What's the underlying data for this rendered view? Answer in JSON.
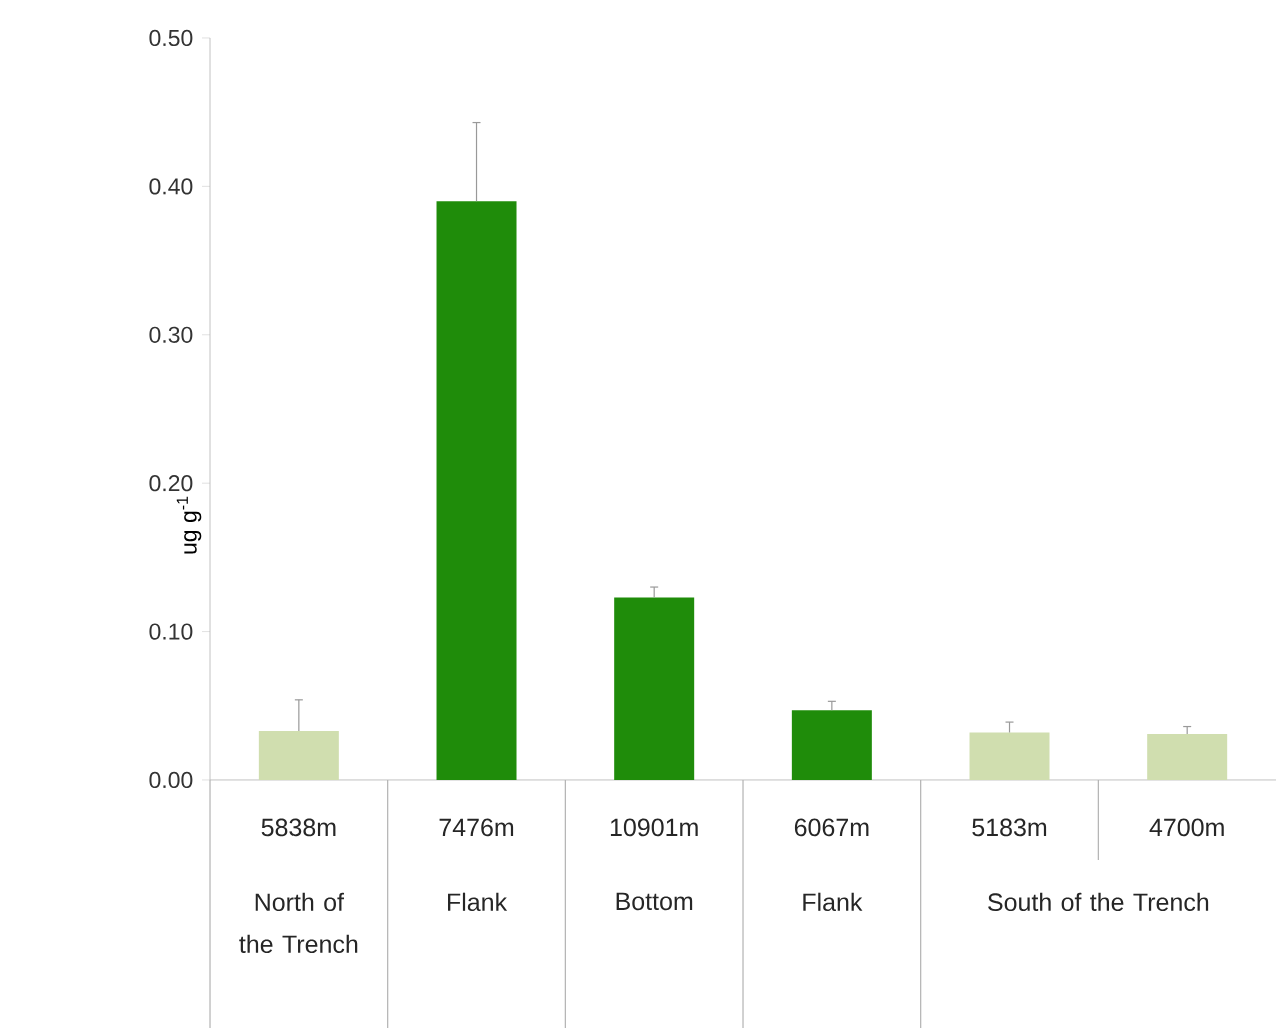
{
  "chart_data": {
    "type": "bar",
    "ylabel": "ug g$^{-1}$",
    "categories": [
      "5838m",
      "7476m",
      "10901m",
      "6067m",
      "5183m",
      "4700m"
    ],
    "values": [
      0.033,
      0.39,
      0.123,
      0.047,
      0.032,
      0.031
    ],
    "colors": [
      "#d0deaf",
      "#1f8c0a",
      "#1f8c0a",
      "#1f8c0a",
      "#d0deaf",
      "#d0deaf"
    ],
    "errors": [
      [
        0.033,
        0.054
      ],
      [
        0.39,
        0.443
      ],
      [
        0.123,
        0.13
      ],
      [
        0.047,
        0.053
      ],
      [
        0.032,
        0.039
      ],
      [
        0.031,
        0.036
      ]
    ],
    "ylim": [
      0,
      0.5
    ],
    "yticks": [
      {
        "value": 0,
        "label": "0.00"
      },
      {
        "value": 0.1,
        "label": "0.10"
      },
      {
        "value": 0.2,
        "label": "0.20"
      },
      {
        "value": 0.3,
        "label": "0.30"
      },
      {
        "value": 0.4,
        "label": "0.40"
      },
      {
        "value": 0.5,
        "label": "0.50"
      }
    ],
    "annotations": [
      "North of the Trench",
      "Flank",
      "Bottom",
      "Flank",
      "South of the Trench"
    ],
    "grid": false
  }
}
